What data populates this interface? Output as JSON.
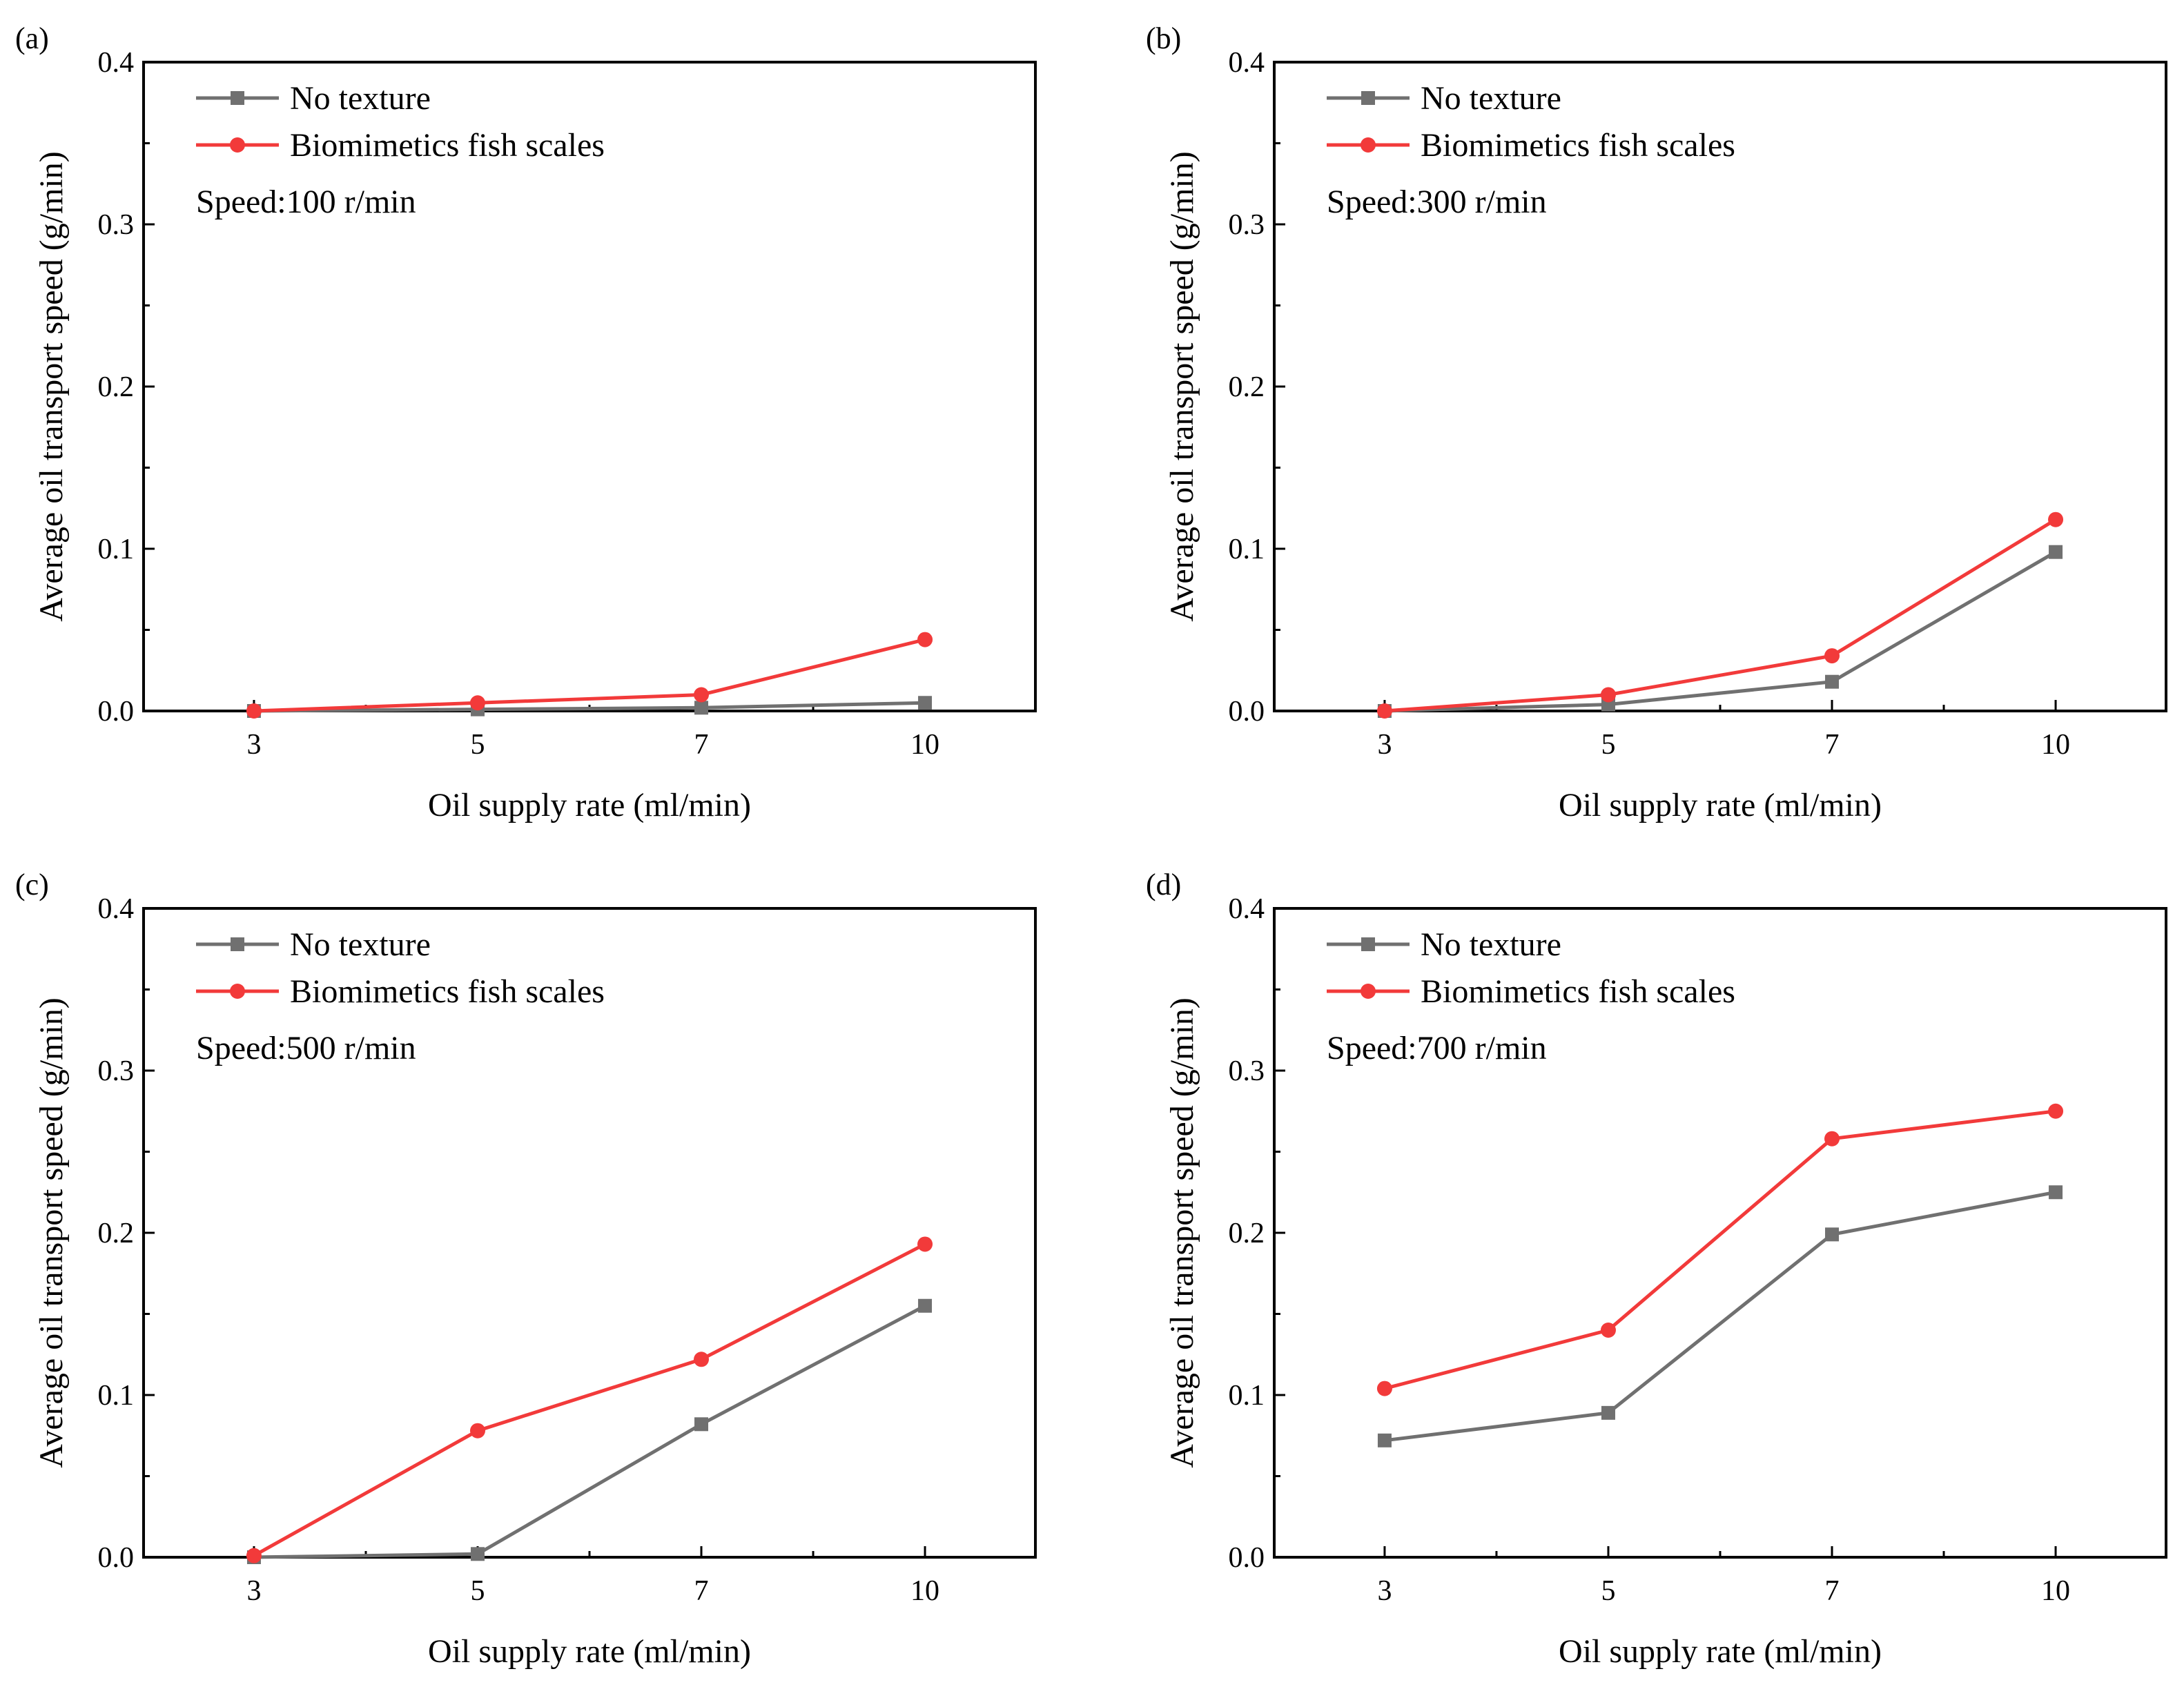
{
  "legend": {
    "no_texture": "No texture",
    "fish_scales": "Biomimetics fish scales"
  },
  "colors": {
    "no_texture": "#707070",
    "fish_scales": "#f23a3a"
  },
  "chart_data": [
    {
      "type": "line",
      "panel": "(a)",
      "annotation": "Speed:100 r/min",
      "xlabel": "Oil supply rate (ml/min)",
      "ylabel": "Average oil transport speed (g/min)",
      "categories": [
        "3",
        "5",
        "7",
        "10"
      ],
      "ylim": [
        0,
        0.4
      ],
      "yticks": [
        "0.0",
        "0.1",
        "0.2",
        "0.3",
        "0.4"
      ],
      "legend_position": "top-left",
      "series": [
        {
          "name": "No texture",
          "marker": "square",
          "values": [
            0.0,
            0.001,
            0.002,
            0.005
          ]
        },
        {
          "name": "Biomimetics fish scales",
          "marker": "circle",
          "values": [
            0.0,
            0.005,
            0.01,
            0.044
          ]
        }
      ]
    },
    {
      "type": "line",
      "panel": "(b)",
      "annotation": "Speed:300 r/min",
      "xlabel": "Oil supply rate (ml/min)",
      "ylabel": "Average oil transport speed (g/min)",
      "categories": [
        "3",
        "5",
        "7",
        "10"
      ],
      "ylim": [
        0,
        0.4
      ],
      "yticks": [
        "0.0",
        "0.1",
        "0.2",
        "0.3",
        "0.4"
      ],
      "legend_position": "top-left",
      "series": [
        {
          "name": "No texture",
          "marker": "square",
          "values": [
            0.0,
            0.004,
            0.018,
            0.098
          ]
        },
        {
          "name": "Biomimetics fish scales",
          "marker": "circle",
          "values": [
            0.0,
            0.01,
            0.034,
            0.118
          ]
        }
      ]
    },
    {
      "type": "line",
      "panel": "(c)",
      "annotation": "Speed:500 r/min",
      "xlabel": "Oil supply rate (ml/min)",
      "ylabel": "Average oil transport speed (g/min)",
      "categories": [
        "3",
        "5",
        "7",
        "10"
      ],
      "ylim": [
        0,
        0.4
      ],
      "yticks": [
        "0.0",
        "0.1",
        "0.2",
        "0.3",
        "0.4"
      ],
      "legend_position": "top-left",
      "series": [
        {
          "name": "No texture",
          "marker": "square",
          "values": [
            0.0,
            0.002,
            0.082,
            0.155
          ]
        },
        {
          "name": "Biomimetics fish scales",
          "marker": "circle",
          "values": [
            0.001,
            0.078,
            0.122,
            0.193
          ]
        }
      ]
    },
    {
      "type": "line",
      "panel": "(d)",
      "annotation": "Speed:700 r/min",
      "xlabel": "Oil supply rate (ml/min)",
      "ylabel": "Average oil transport speed (g/min)",
      "categories": [
        "3",
        "5",
        "7",
        "10"
      ],
      "ylim": [
        0,
        0.4
      ],
      "yticks": [
        "0.0",
        "0.1",
        "0.2",
        "0.3",
        "0.4"
      ],
      "legend_position": "top-left",
      "series": [
        {
          "name": "No texture",
          "marker": "square",
          "values": [
            0.072,
            0.089,
            0.199,
            0.225
          ]
        },
        {
          "name": "Biomimetics fish scales",
          "marker": "circle",
          "values": [
            0.104,
            0.14,
            0.258,
            0.275
          ]
        }
      ]
    }
  ]
}
